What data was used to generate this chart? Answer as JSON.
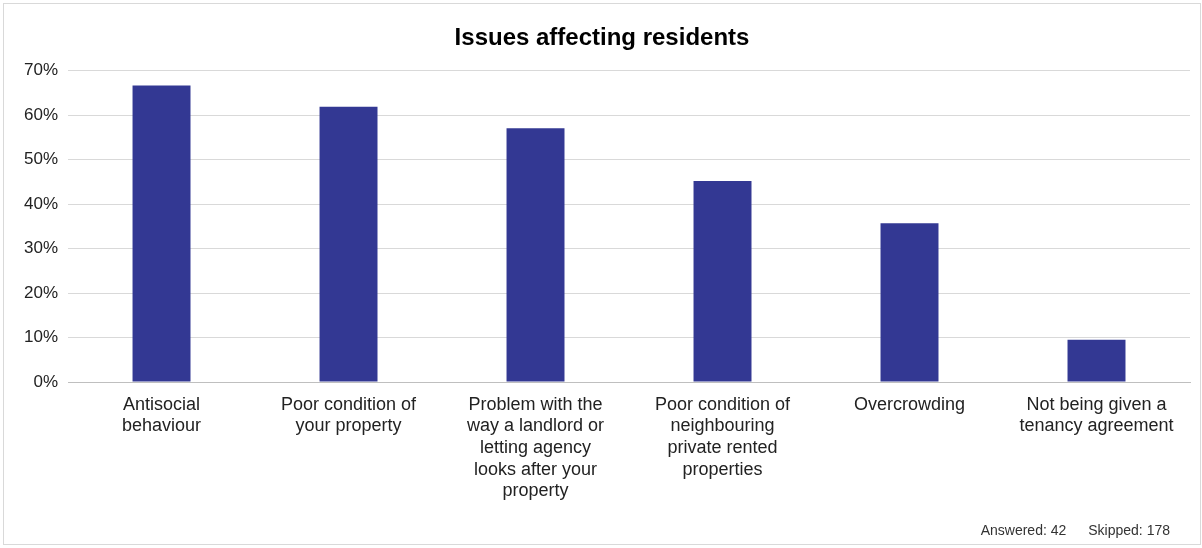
{
  "chart_data": {
    "type": "bar",
    "title": "Issues affecting residents",
    "categories": [
      "Antisocial behaviour",
      "Poor condition of your property",
      "Problem with the way a landlord or letting agency looks after your property",
      "Poor condition of neighbouring private rented properties",
      "Overcrowding",
      "Not being given a tenancy agreement"
    ],
    "values": [
      66.7,
      61.9,
      57.1,
      45.2,
      35.7,
      9.5
    ],
    "color": "#333893",
    "ylim": [
      0,
      70
    ],
    "yticks": [
      {
        "value": 0,
        "label": "0%"
      },
      {
        "value": 10,
        "label": "10%"
      },
      {
        "value": 20,
        "label": "20%"
      },
      {
        "value": 30,
        "label": "30%"
      },
      {
        "value": 40,
        "label": "40%"
      },
      {
        "value": 50,
        "label": "50%"
      },
      {
        "value": 60,
        "label": "60%"
      },
      {
        "value": 70,
        "label": "70%"
      }
    ],
    "grid": "y",
    "legend": false,
    "annotations": [
      "Answered: 42",
      "Skipped: 178"
    ]
  }
}
